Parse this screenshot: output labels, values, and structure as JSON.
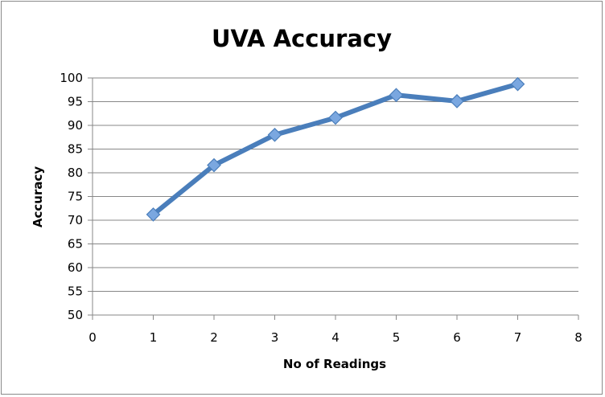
{
  "chart_data": {
    "type": "line",
    "title": "UVA Accuracy",
    "xlabel": "No of Readings",
    "ylabel": "Accuracy",
    "xlim": [
      0,
      8
    ],
    "ylim": [
      50,
      100
    ],
    "xticks": [
      "0",
      "1",
      "2",
      "3",
      "4",
      "5",
      "6",
      "7",
      "8"
    ],
    "yticks": [
      "50",
      "55",
      "60",
      "65",
      "70",
      "75",
      "80",
      "85",
      "90",
      "95",
      "100"
    ],
    "grid": "horizontal",
    "series": [
      {
        "x": [
          1,
          2,
          3,
          4,
          5,
          6,
          7
        ],
        "values": [
          71.2,
          81.6,
          88.0,
          91.6,
          96.4,
          95.1,
          98.7
        ]
      }
    ],
    "colors": {
      "line": "#4a7ebb",
      "marker_fill": "#7aa7e0",
      "marker_stroke": "#4a7ebb",
      "grid": "#878787",
      "axis": "#878787"
    }
  }
}
